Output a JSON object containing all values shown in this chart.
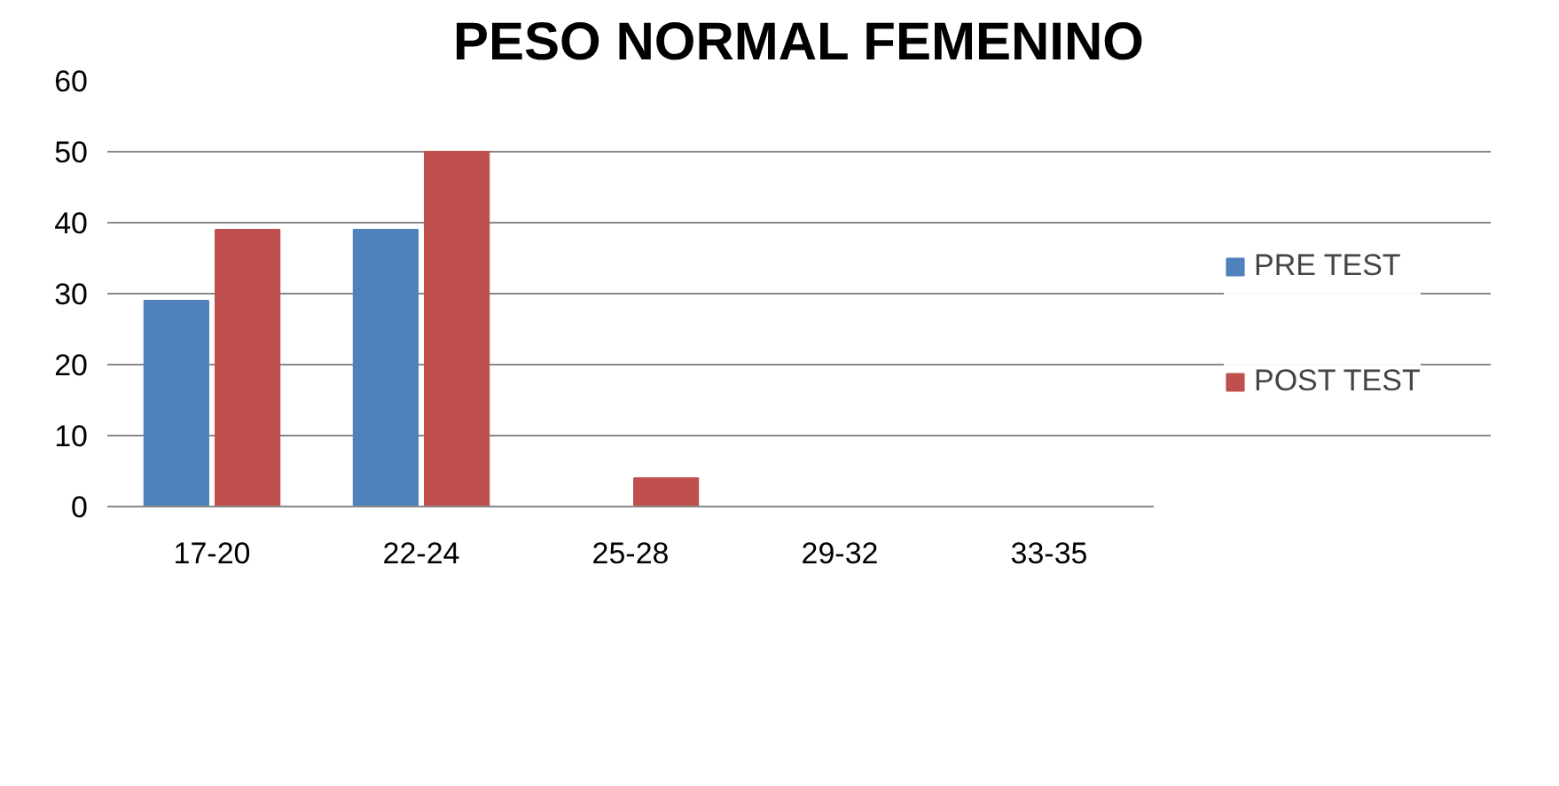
{
  "chart_data": {
    "type": "bar",
    "title": "PESO NORMAL FEMENINO",
    "categories": [
      "17-20",
      "22-24",
      "25-28",
      "29-32",
      "33-35"
    ],
    "series": [
      {
        "name": "PRE TEST",
        "color": "#4f81bd",
        "values": [
          29,
          39,
          0,
          0,
          0
        ]
      },
      {
        "name": "POST TEST",
        "color": "#c0504d",
        "values": [
          39,
          50,
          4,
          0,
          0
        ]
      }
    ],
    "ylim": [
      0,
      60
    ],
    "yticks": [
      0,
      10,
      20,
      30,
      40,
      50,
      60
    ],
    "grid": "y",
    "legend": "right"
  }
}
